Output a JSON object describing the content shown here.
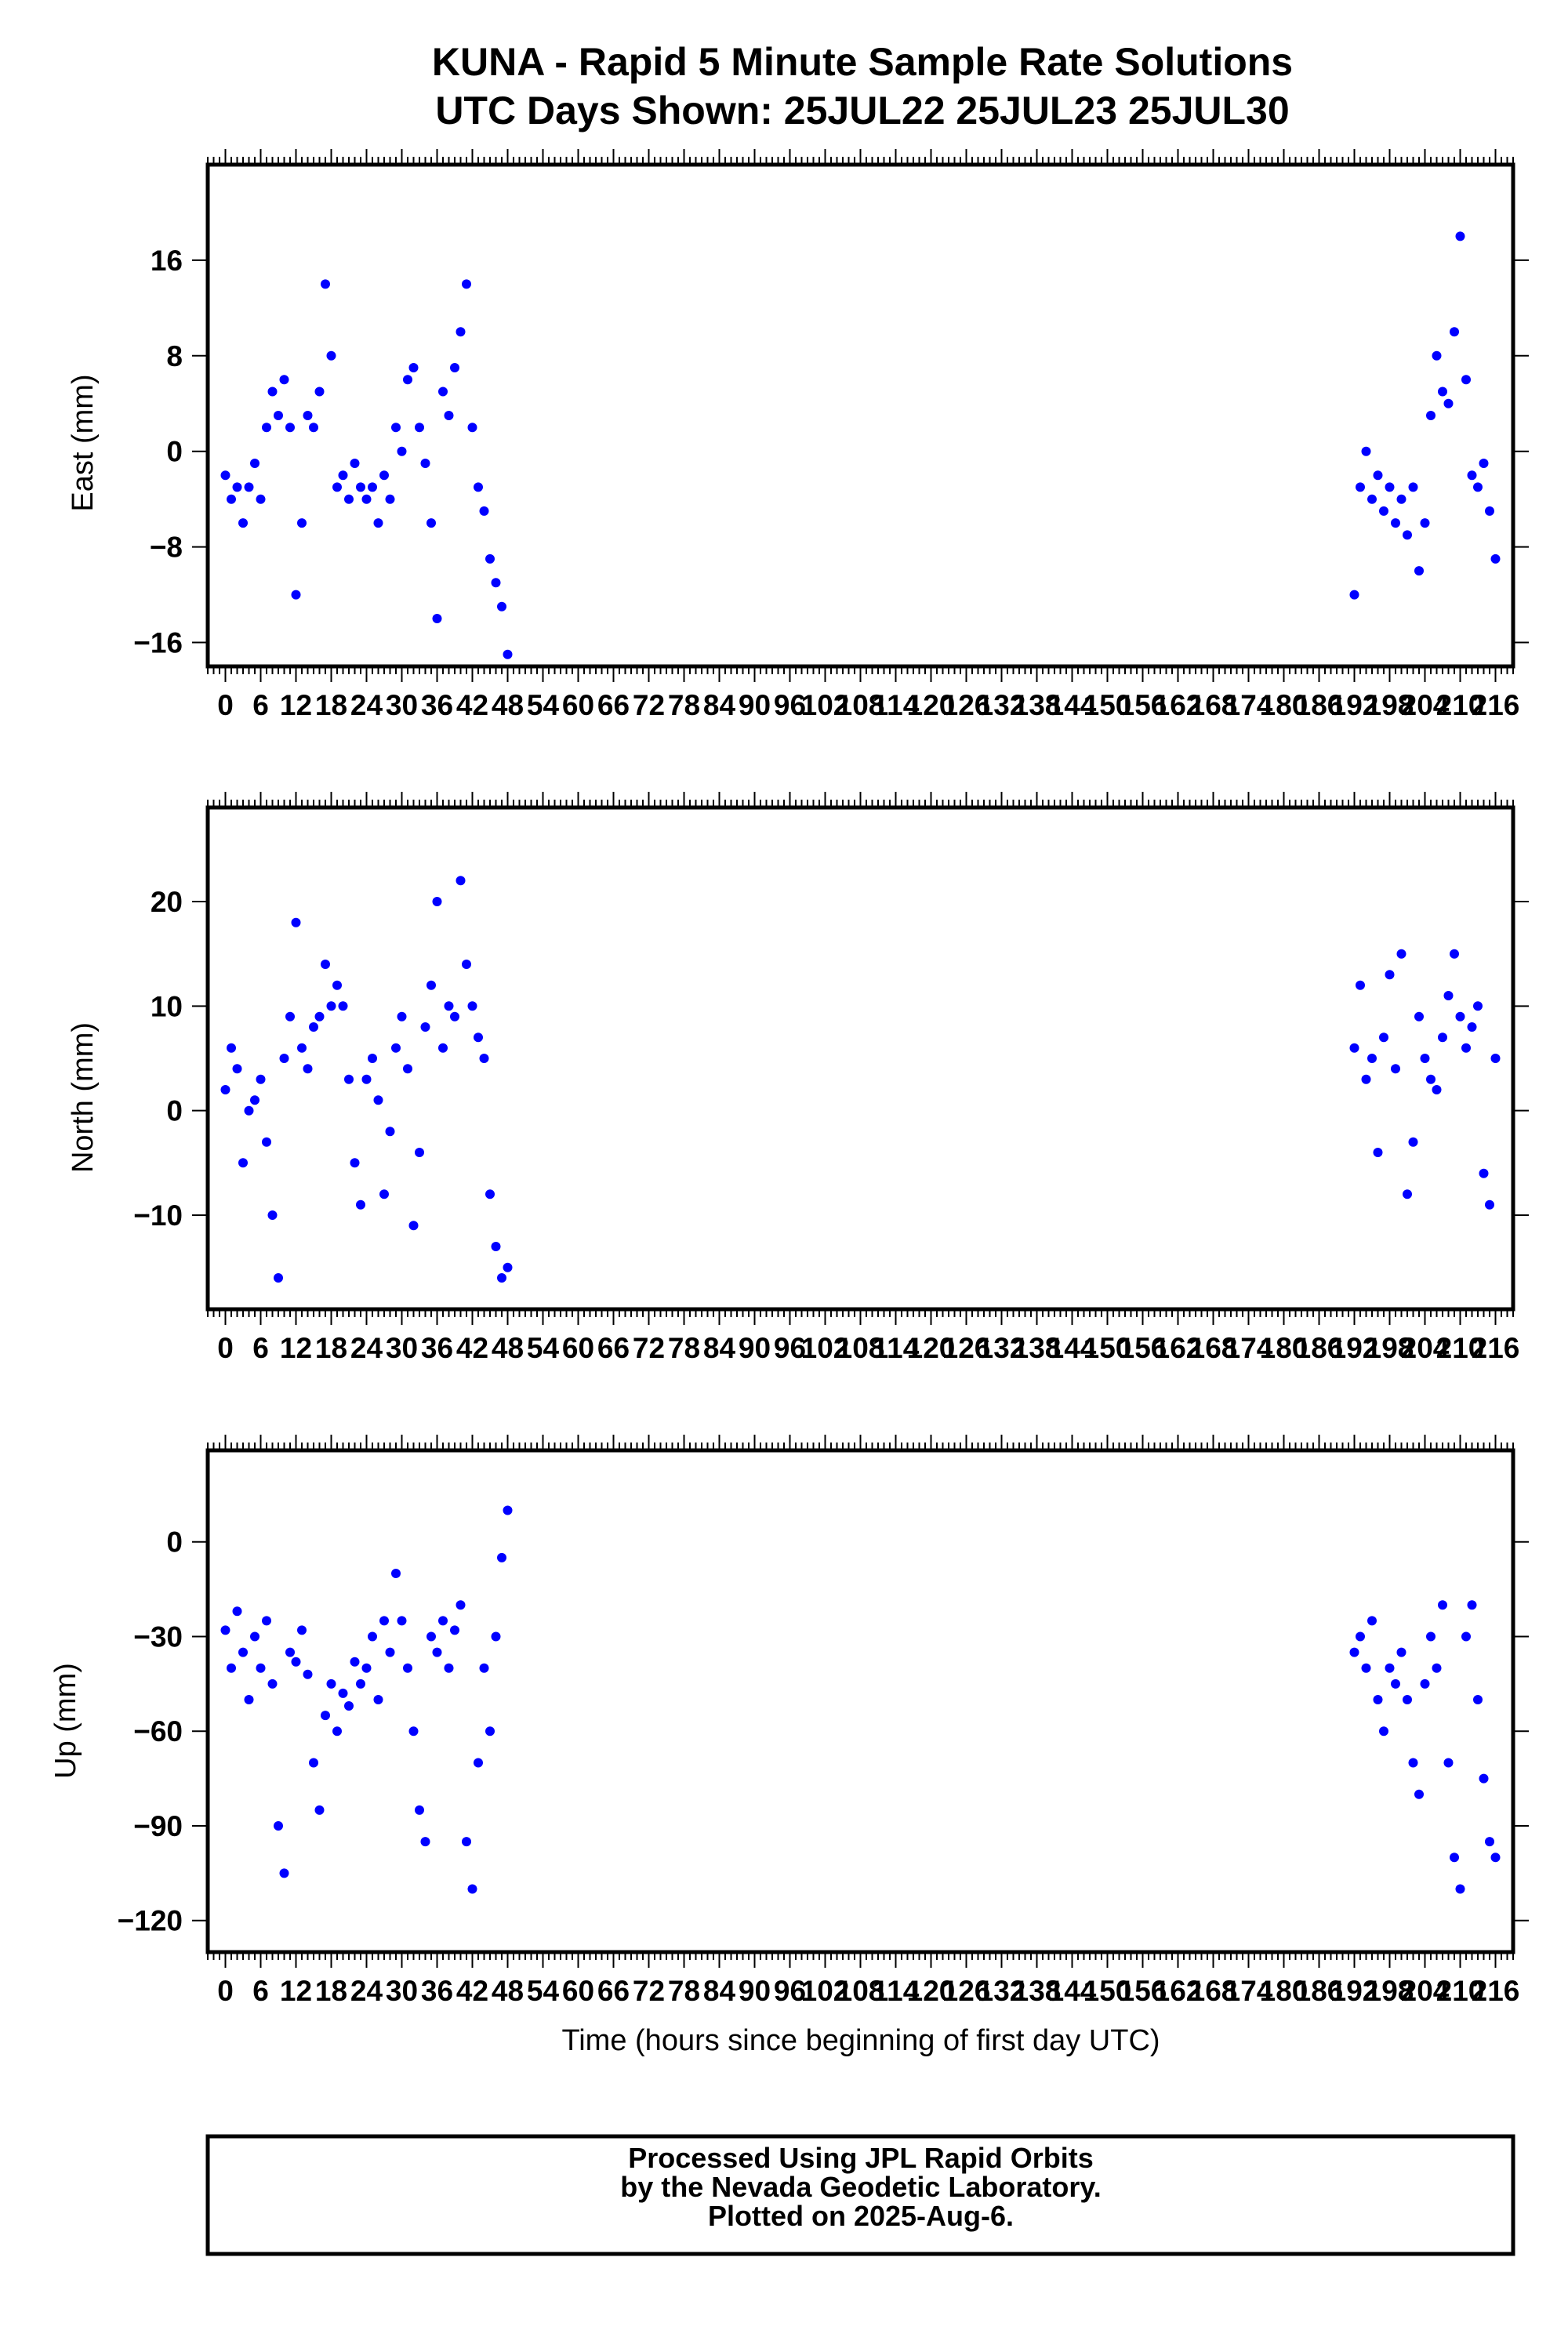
{
  "title": {
    "line1": "KUNA - Rapid 5 Minute Sample Rate Solutions",
    "line2": "UTC Days Shown:  25JUL22 25JUL23 25JUL30"
  },
  "xlabel": "Time (hours since beginning of first day UTC)",
  "footer": {
    "line1": "Processed Using JPL Rapid Orbits",
    "line2": "by the Nevada Geodetic Laboratory.",
    "line3": "Plotted on 2025-Aug-6."
  },
  "colors": {
    "points": "#0000ff",
    "frame": "#000000"
  },
  "chart_data": [
    {
      "type": "scatter",
      "ylabel": "East (mm)",
      "xlim": [
        -3,
        219
      ],
      "ylim": [
        -18,
        24
      ],
      "x_ticks": [
        0,
        6,
        12,
        18,
        24,
        30,
        36,
        42,
        48,
        54,
        60,
        66,
        72,
        78,
        84,
        90,
        96,
        102,
        108,
        114,
        120,
        126,
        132,
        138,
        144,
        150,
        156,
        162,
        168,
        174,
        180,
        186,
        192,
        198,
        204,
        210,
        216
      ],
      "x_tick_labels": [
        "0",
        "6",
        "12",
        "18",
        "24",
        "30",
        "36",
        "42",
        "48",
        "54",
        "60",
        "66",
        "72",
        "78",
        "84",
        "90",
        "96",
        "102",
        "108",
        "114",
        "120",
        "126",
        "132",
        "138",
        "144",
        "150",
        "156",
        "162",
        "168",
        "174",
        "180",
        "186",
        "192",
        "198",
        "204",
        "210",
        "216"
      ],
      "y_ticks": [
        -16,
        -8,
        0,
        8,
        16
      ],
      "y_tick_labels": [
        "−16",
        "−8",
        "0",
        "8",
        "16"
      ],
      "series": [
        {
          "x": [
            0,
            1,
            2,
            3,
            4,
            5,
            6,
            7,
            8,
            9,
            10,
            11,
            12,
            13,
            14,
            15,
            16,
            17,
            18,
            19,
            20,
            21,
            22,
            23,
            24,
            25,
            26,
            27,
            28,
            29,
            30,
            31,
            32,
            33,
            34,
            35,
            36,
            37,
            38,
            39,
            40,
            41,
            42,
            43,
            44,
            45,
            46,
            47,
            48,
            192,
            193,
            194,
            195,
            196,
            197,
            198,
            199,
            200,
            201,
            202,
            203,
            204,
            205,
            206,
            207,
            208,
            209,
            210,
            211,
            212,
            213,
            214,
            215,
            216
          ],
          "y": [
            -2,
            -4,
            -3,
            -6,
            -3,
            -1,
            -4,
            2,
            5,
            3,
            6,
            2,
            -12,
            -6,
            3,
            2,
            5,
            14,
            8,
            -3,
            -2,
            -4,
            -1,
            -3,
            -4,
            -3,
            -6,
            -2,
            -4,
            2,
            0,
            6,
            7,
            2,
            -1,
            -6,
            -14,
            5,
            3,
            7,
            10,
            14,
            2,
            -3,
            -5,
            -9,
            -11,
            -13,
            -17,
            -12,
            -3,
            0,
            -4,
            -2,
            -5,
            -3,
            -6,
            -4,
            -7,
            -3,
            -10,
            -6,
            3,
            8,
            5,
            4,
            10,
            18,
            6,
            -2,
            -3,
            -1,
            -5,
            -9
          ]
        }
      ]
    },
    {
      "type": "scatter",
      "ylabel": "North (mm)",
      "xlim": [
        -3,
        219
      ],
      "ylim": [
        -19,
        29
      ],
      "x_ticks": [
        0,
        6,
        12,
        18,
        24,
        30,
        36,
        42,
        48,
        54,
        60,
        66,
        72,
        78,
        84,
        90,
        96,
        102,
        108,
        114,
        120,
        126,
        132,
        138,
        144,
        150,
        156,
        162,
        168,
        174,
        180,
        186,
        192,
        198,
        204,
        210,
        216
      ],
      "x_tick_labels": [
        "0",
        "6",
        "12",
        "18",
        "24",
        "30",
        "36",
        "42",
        "48",
        "54",
        "60",
        "66",
        "72",
        "78",
        "84",
        "90",
        "96",
        "102",
        "108",
        "114",
        "120",
        "126",
        "132",
        "138",
        "144",
        "150",
        "156",
        "162",
        "168",
        "174",
        "180",
        "186",
        "192",
        "198",
        "204",
        "210",
        "216"
      ],
      "y_ticks": [
        -10,
        0,
        10,
        20
      ],
      "y_tick_labels": [
        "−10",
        "0",
        "10",
        "20"
      ],
      "series": [
        {
          "x": [
            0,
            1,
            2,
            3,
            4,
            5,
            6,
            7,
            8,
            9,
            10,
            11,
            12,
            13,
            14,
            15,
            16,
            17,
            18,
            19,
            20,
            21,
            22,
            23,
            24,
            25,
            26,
            27,
            28,
            29,
            30,
            31,
            32,
            33,
            34,
            35,
            36,
            37,
            38,
            39,
            40,
            41,
            42,
            43,
            44,
            45,
            46,
            47,
            48,
            192,
            193,
            194,
            195,
            196,
            197,
            198,
            199,
            200,
            201,
            202,
            203,
            204,
            205,
            206,
            207,
            208,
            209,
            210,
            211,
            212,
            213,
            214,
            215,
            216
          ],
          "y": [
            2,
            6,
            4,
            -5,
            0,
            1,
            3,
            -3,
            -10,
            -16,
            5,
            9,
            18,
            6,
            4,
            8,
            9,
            14,
            10,
            12,
            10,
            3,
            -5,
            -9,
            3,
            5,
            1,
            -8,
            -2,
            6,
            9,
            4,
            -11,
            -4,
            8,
            12,
            20,
            6,
            10,
            9,
            22,
            14,
            10,
            7,
            5,
            -8,
            -13,
            -16,
            -15,
            6,
            12,
            3,
            5,
            -4,
            7,
            13,
            4,
            15,
            -8,
            -3,
            9,
            5,
            3,
            2,
            7,
            11,
            15,
            9,
            6,
            8,
            10,
            -6,
            -9,
            5
          ]
        }
      ]
    },
    {
      "type": "scatter",
      "ylabel": "Up (mm)",
      "xlim": [
        -3,
        219
      ],
      "ylim": [
        -130,
        29
      ],
      "x_ticks": [
        0,
        6,
        12,
        18,
        24,
        30,
        36,
        42,
        48,
        54,
        60,
        66,
        72,
        78,
        84,
        90,
        96,
        102,
        108,
        114,
        120,
        126,
        132,
        138,
        144,
        150,
        156,
        162,
        168,
        174,
        180,
        186,
        192,
        198,
        204,
        210,
        216
      ],
      "x_tick_labels": [
        "0",
        "6",
        "12",
        "18",
        "24",
        "30",
        "36",
        "42",
        "48",
        "54",
        "60",
        "66",
        "72",
        "78",
        "84",
        "90",
        "96",
        "102",
        "108",
        "114",
        "120",
        "126",
        "132",
        "138",
        "144",
        "150",
        "156",
        "162",
        "168",
        "174",
        "180",
        "186",
        "192",
        "198",
        "204",
        "210",
        "216"
      ],
      "y_ticks": [
        -120,
        -90,
        -60,
        -30,
        0
      ],
      "y_tick_labels": [
        "−120",
        "−90",
        "−60",
        "−30",
        "0"
      ],
      "series": [
        {
          "x": [
            0,
            1,
            2,
            3,
            4,
            5,
            6,
            7,
            8,
            9,
            10,
            11,
            12,
            13,
            14,
            15,
            16,
            17,
            18,
            19,
            20,
            21,
            22,
            23,
            24,
            25,
            26,
            27,
            28,
            29,
            30,
            31,
            32,
            33,
            34,
            35,
            36,
            37,
            38,
            39,
            40,
            41,
            42,
            43,
            44,
            45,
            46,
            47,
            48,
            192,
            193,
            194,
            195,
            196,
            197,
            198,
            199,
            200,
            201,
            202,
            203,
            204,
            205,
            206,
            207,
            208,
            209,
            210,
            211,
            212,
            213,
            214,
            215,
            216
          ],
          "y": [
            -28,
            -40,
            -22,
            -35,
            -50,
            -30,
            -40,
            -25,
            -45,
            -90,
            -105,
            -35,
            -38,
            -28,
            -42,
            -70,
            -85,
            -55,
            -45,
            -60,
            -48,
            -52,
            -38,
            -45,
            -40,
            -30,
            -50,
            -25,
            -35,
            -10,
            -25,
            -40,
            -60,
            -85,
            -95,
            -30,
            -35,
            -25,
            -40,
            -28,
            -20,
            -95,
            -110,
            -70,
            -40,
            -60,
            -30,
            -5,
            10,
            -35,
            -30,
            -40,
            -25,
            -50,
            -60,
            -40,
            -45,
            -35,
            -50,
            -70,
            -80,
            -45,
            -30,
            -40,
            -20,
            -70,
            -100,
            -110,
            -30,
            -20,
            -50,
            -75,
            -95,
            -100
          ]
        }
      ]
    }
  ]
}
